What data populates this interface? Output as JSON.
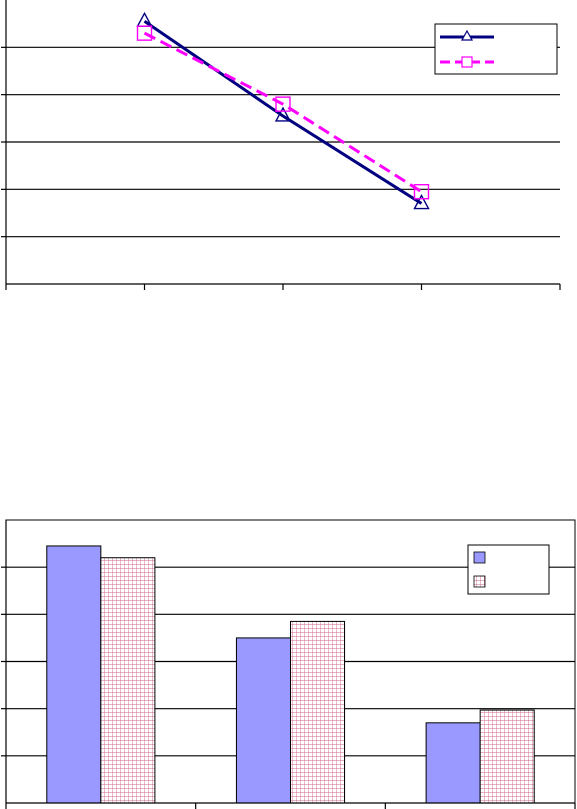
{
  "colors": {
    "line_series_1": "#000080",
    "line_series_2": "#ff00ff",
    "bar_series_1": "#9999ff",
    "bar_series_2_grid": "#cc6688",
    "gridline": "#000000",
    "axis": "#000000"
  },
  "chart_data": [
    {
      "type": "line",
      "title": "",
      "xlabel": "",
      "ylabel": "",
      "categories": [
        "",
        "",
        ""
      ],
      "ylim": [
        0,
        6
      ],
      "grid": true,
      "legend": "top-right",
      "series": [
        {
          "label": "",
          "values": [
            5.55,
            3.55,
            1.7
          ],
          "marker": "triangle",
          "line_style": "solid",
          "color": "#000080"
        },
        {
          "label": "",
          "values": [
            5.3,
            3.8,
            1.95
          ],
          "marker": "square",
          "line_style": "dashed",
          "color": "#ff00ff"
        }
      ]
    },
    {
      "type": "bar",
      "title": "",
      "xlabel": "",
      "ylabel": "",
      "categories": [
        "",
        "",
        ""
      ],
      "ylim": [
        0,
        6
      ],
      "grid": true,
      "legend": "top-right",
      "series": [
        {
          "label": "",
          "values": [
            5.45,
            3.5,
            1.7
          ],
          "fill": "solid",
          "color": "#9999ff"
        },
        {
          "label": "",
          "values": [
            5.2,
            3.85,
            1.97
          ],
          "fill": "grid-pattern",
          "color": "#cc6688"
        }
      ]
    }
  ]
}
